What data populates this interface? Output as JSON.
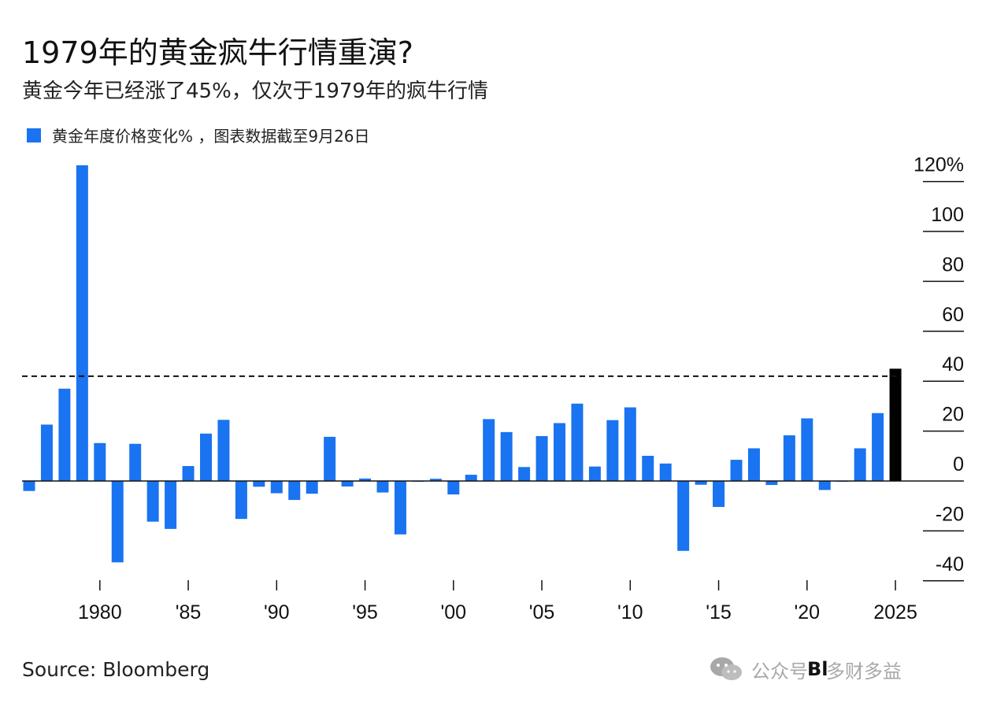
{
  "header": {
    "title": "1979年的黄金疯牛行情重演?",
    "subtitle": "黄金今年已经涨了45%，仅次于1979年的疯牛行情"
  },
  "legend": {
    "label": "黄金年度价格变化% ，图表数据截至9月26日"
  },
  "footer": {
    "source": "Source: Bloomberg",
    "brand": "Bl",
    "watermark": "公众号 · 多财多益"
  },
  "colors": {
    "bar": "#1a73f0",
    "highlight": "#000000",
    "axis": "#111111"
  },
  "chart_data": {
    "type": "bar",
    "title": "1979年的黄金疯牛行情重演?",
    "subtitle": "黄金今年已经涨了45%，仅次于1979年的疯牛行情",
    "series": [
      {
        "name": "黄金年度价格变化%",
        "x": [
          1976,
          1977,
          1978,
          1979,
          1980,
          1981,
          1982,
          1983,
          1984,
          1985,
          1986,
          1987,
          1988,
          1989,
          1990,
          1991,
          1992,
          1993,
          1994,
          1995,
          1996,
          1997,
          1998,
          1999,
          2000,
          2001,
          2002,
          2003,
          2004,
          2005,
          2006,
          2007,
          2008,
          2009,
          2010,
          2011,
          2012,
          2013,
          2014,
          2015,
          2016,
          2017,
          2018,
          2019,
          2020,
          2021,
          2022,
          2023,
          2024,
          2025
        ],
        "values": [
          -4,
          22.6,
          37,
          126.5,
          15.2,
          -32.6,
          14.9,
          -16.3,
          -19.2,
          6,
          19,
          24.5,
          -15.2,
          -2.3,
          -4.9,
          -7.6,
          -5.1,
          17.7,
          -2.2,
          1,
          -4.6,
          -21.4,
          -0.3,
          0.9,
          -5.4,
          2.5,
          24.8,
          19.6,
          5.6,
          18,
          23.2,
          31,
          5.8,
          24.4,
          29.5,
          10.1,
          7,
          -28,
          -1.5,
          -10.4,
          8.5,
          13.1,
          -1.6,
          18.3,
          25.1,
          -3.6,
          -0.3,
          13.1,
          27.2,
          45
        ]
      }
    ],
    "highlight_year": 2025,
    "reference_line": {
      "value": 42,
      "style": "dashed"
    },
    "y_ticks": [
      {
        "value": 120,
        "label": "120%"
      },
      {
        "value": 100,
        "label": "100"
      },
      {
        "value": 80,
        "label": "80"
      },
      {
        "value": 60,
        "label": "60"
      },
      {
        "value": 40,
        "label": "40"
      },
      {
        "value": 20,
        "label": "20"
      },
      {
        "value": 0,
        "label": "0"
      },
      {
        "value": -20,
        "label": "-20"
      },
      {
        "value": -40,
        "label": "-40"
      }
    ],
    "x_ticks": [
      {
        "year": 1980,
        "label": "1980"
      },
      {
        "year": 1985,
        "label": "'85"
      },
      {
        "year": 1990,
        "label": "'90"
      },
      {
        "year": 1995,
        "label": "'95"
      },
      {
        "year": 2000,
        "label": "'00"
      },
      {
        "year": 2005,
        "label": "'05"
      },
      {
        "year": 2010,
        "label": "'10"
      },
      {
        "year": 2015,
        "label": "'15"
      },
      {
        "year": 2020,
        "label": "'20"
      },
      {
        "year": 2025,
        "label": "2025"
      }
    ],
    "ylim": [
      -45,
      127
    ],
    "xlabel": "",
    "ylabel": "",
    "legend_position": "top-left"
  }
}
